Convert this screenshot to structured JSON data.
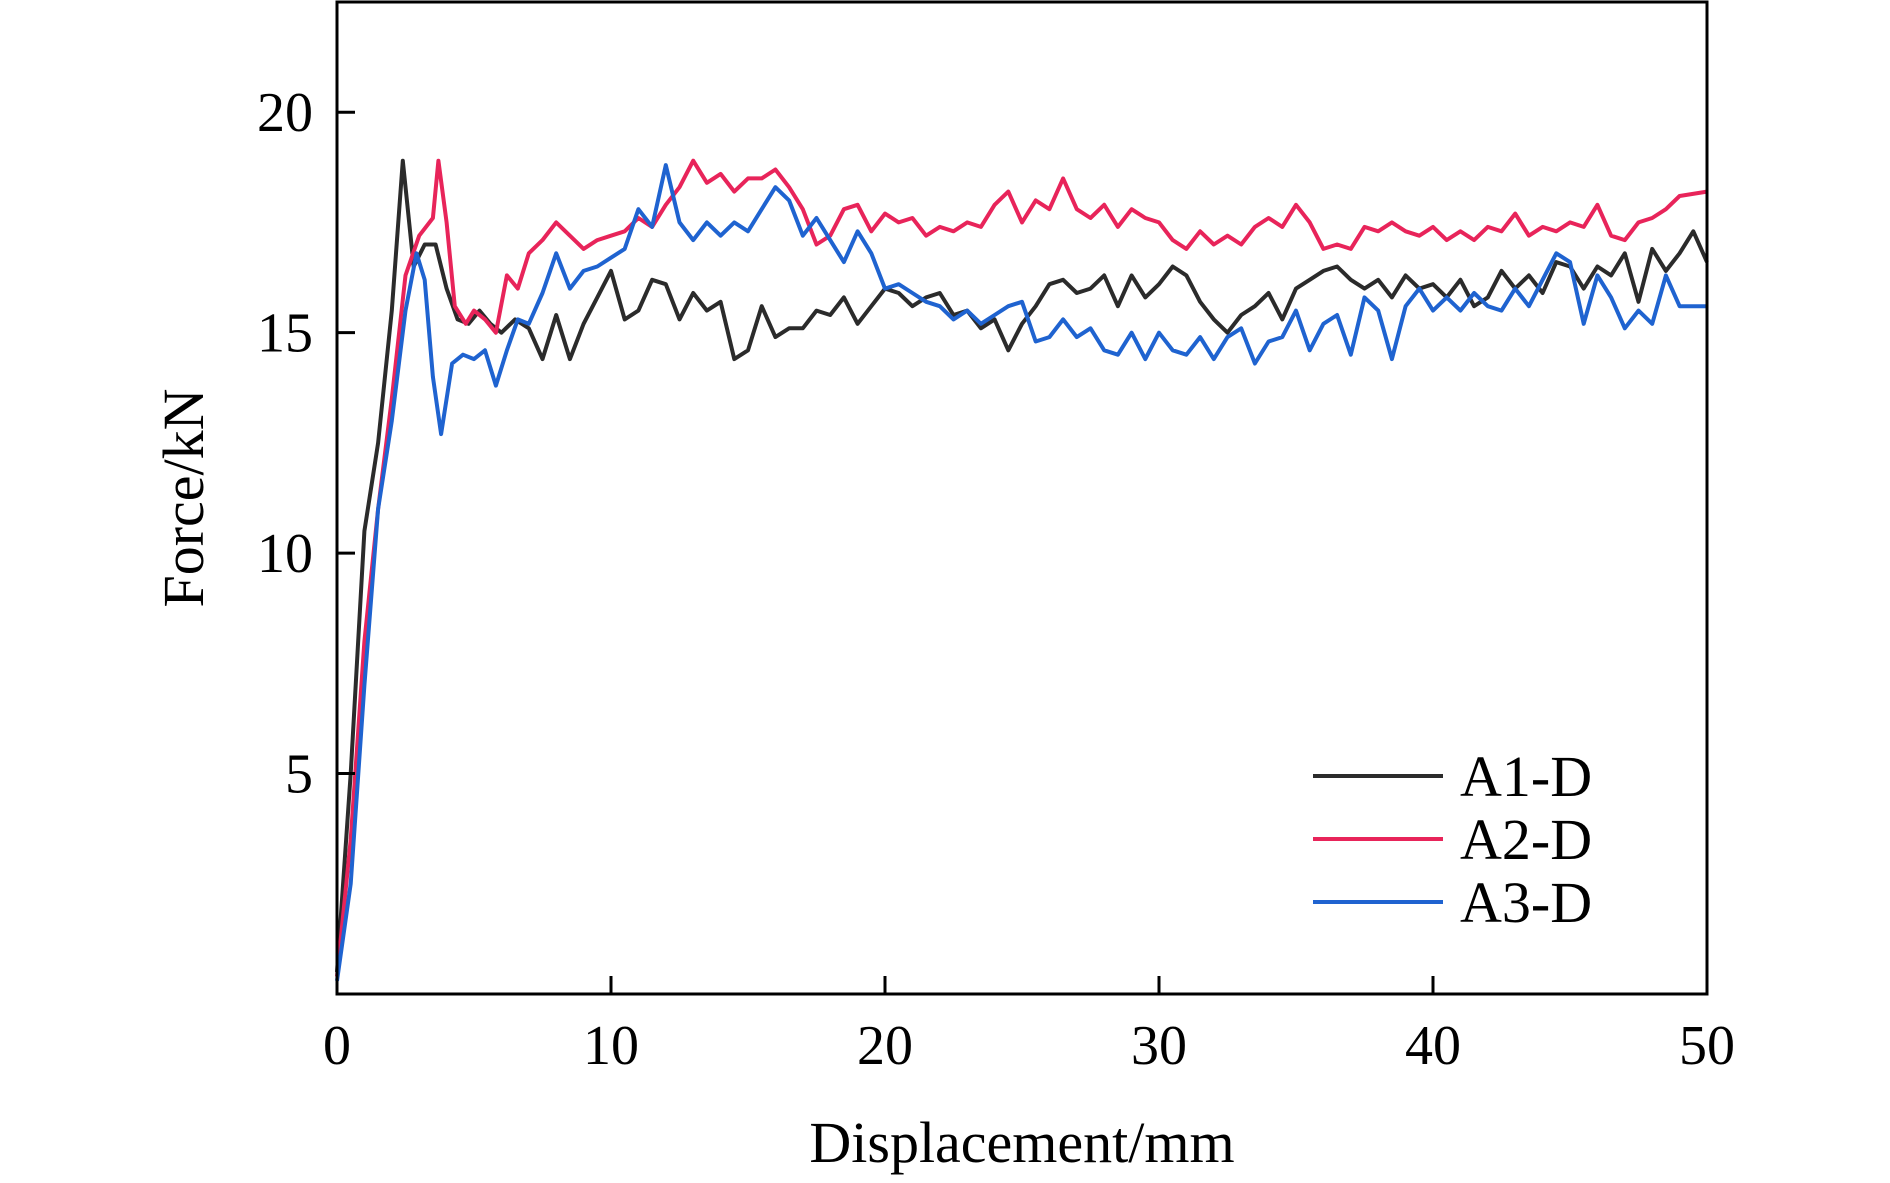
{
  "chart_data": {
    "type": "line",
    "xlabel": "Displacement/mm",
    "ylabel": "Force/kN",
    "xlim": [
      0,
      50
    ],
    "ylim": [
      0,
      22.5
    ],
    "x_ticks": [
      0,
      10,
      20,
      30,
      40,
      50
    ],
    "y_ticks": [
      5,
      10,
      15,
      20
    ],
    "x_tick_labels": [
      "0",
      "10",
      "20",
      "30",
      "40",
      "50"
    ],
    "y_tick_labels": [
      "5",
      "10",
      "15",
      "20"
    ],
    "grid": false,
    "legend_position": "bottom-right",
    "series": [
      {
        "name": "A1-D",
        "color": "#2b2b2b",
        "points": [
          [
            0,
            0.5
          ],
          [
            0.5,
            5
          ],
          [
            1.0,
            10.5
          ],
          [
            1.5,
            12.5
          ],
          [
            2.0,
            15.5
          ],
          [
            2.4,
            18.9
          ],
          [
            2.8,
            16.5
          ],
          [
            3.2,
            17.0
          ],
          [
            3.6,
            17.0
          ],
          [
            4.0,
            16.0
          ],
          [
            4.4,
            15.3
          ],
          [
            4.8,
            15.2
          ],
          [
            5.2,
            15.5
          ],
          [
            5.6,
            15.2
          ],
          [
            6.0,
            15.0
          ],
          [
            6.5,
            15.3
          ],
          [
            7.0,
            15.1
          ],
          [
            7.5,
            14.4
          ],
          [
            8.0,
            15.4
          ],
          [
            8.5,
            14.4
          ],
          [
            9.0,
            15.2
          ],
          [
            9.5,
            15.8
          ],
          [
            10.0,
            16.4
          ],
          [
            10.5,
            15.3
          ],
          [
            11.0,
            15.5
          ],
          [
            11.5,
            16.2
          ],
          [
            12.0,
            16.1
          ],
          [
            12.5,
            15.3
          ],
          [
            13.0,
            15.9
          ],
          [
            13.5,
            15.5
          ],
          [
            14.0,
            15.7
          ],
          [
            14.5,
            14.4
          ],
          [
            15.0,
            14.6
          ],
          [
            15.5,
            15.6
          ],
          [
            16.0,
            14.9
          ],
          [
            16.5,
            15.1
          ],
          [
            17.0,
            15.1
          ],
          [
            17.5,
            15.5
          ],
          [
            18.0,
            15.4
          ],
          [
            18.5,
            15.8
          ],
          [
            19.0,
            15.2
          ],
          [
            19.5,
            15.6
          ],
          [
            20.0,
            16.0
          ],
          [
            20.5,
            15.9
          ],
          [
            21.0,
            15.6
          ],
          [
            21.5,
            15.8
          ],
          [
            22.0,
            15.9
          ],
          [
            22.5,
            15.4
          ],
          [
            23.0,
            15.5
          ],
          [
            23.5,
            15.1
          ],
          [
            24.0,
            15.3
          ],
          [
            24.5,
            14.6
          ],
          [
            25.0,
            15.2
          ],
          [
            25.5,
            15.6
          ],
          [
            26.0,
            16.1
          ],
          [
            26.5,
            16.2
          ],
          [
            27.0,
            15.9
          ],
          [
            27.5,
            16.0
          ],
          [
            28.0,
            16.3
          ],
          [
            28.5,
            15.6
          ],
          [
            29.0,
            16.3
          ],
          [
            29.5,
            15.8
          ],
          [
            30.0,
            16.1
          ],
          [
            30.5,
            16.5
          ],
          [
            31.0,
            16.3
          ],
          [
            31.5,
            15.7
          ],
          [
            32.0,
            15.3
          ],
          [
            32.5,
            15.0
          ],
          [
            33.0,
            15.4
          ],
          [
            33.5,
            15.6
          ],
          [
            34.0,
            15.9
          ],
          [
            34.5,
            15.3
          ],
          [
            35.0,
            16.0
          ],
          [
            35.5,
            16.2
          ],
          [
            36.0,
            16.4
          ],
          [
            36.5,
            16.5
          ],
          [
            37.0,
            16.2
          ],
          [
            37.5,
            16.0
          ],
          [
            38.0,
            16.2
          ],
          [
            38.5,
            15.8
          ],
          [
            39.0,
            16.3
          ],
          [
            39.5,
            16.0
          ],
          [
            40.0,
            16.1
          ],
          [
            40.5,
            15.8
          ],
          [
            41.0,
            16.2
          ],
          [
            41.5,
            15.6
          ],
          [
            42.0,
            15.8
          ],
          [
            42.5,
            16.4
          ],
          [
            43.0,
            16.0
          ],
          [
            43.5,
            16.3
          ],
          [
            44.0,
            15.9
          ],
          [
            44.5,
            16.6
          ],
          [
            45.0,
            16.5
          ],
          [
            45.5,
            16.0
          ],
          [
            46.0,
            16.5
          ],
          [
            46.5,
            16.3
          ],
          [
            47.0,
            16.8
          ],
          [
            47.5,
            15.7
          ],
          [
            48.0,
            16.9
          ],
          [
            48.5,
            16.4
          ],
          [
            49.0,
            16.8
          ],
          [
            49.5,
            17.3
          ],
          [
            50.0,
            16.6
          ]
        ]
      },
      {
        "name": "A2-D",
        "color": "#e8245a",
        "points": [
          [
            0,
            0.4
          ],
          [
            0.5,
            3.5
          ],
          [
            1.0,
            8
          ],
          [
            1.5,
            11
          ],
          [
            2.0,
            13.5
          ],
          [
            2.5,
            16.3
          ],
          [
            3.0,
            17.2
          ],
          [
            3.5,
            17.6
          ],
          [
            3.7,
            18.9
          ],
          [
            4.0,
            17.5
          ],
          [
            4.3,
            15.6
          ],
          [
            4.7,
            15.2
          ],
          [
            5.0,
            15.5
          ],
          [
            5.4,
            15.3
          ],
          [
            5.8,
            15.0
          ],
          [
            6.2,
            16.3
          ],
          [
            6.6,
            16.0
          ],
          [
            7.0,
            16.8
          ],
          [
            7.5,
            17.1
          ],
          [
            8.0,
            17.5
          ],
          [
            8.5,
            17.2
          ],
          [
            9.0,
            16.9
          ],
          [
            9.5,
            17.1
          ],
          [
            10.0,
            17.2
          ],
          [
            10.5,
            17.3
          ],
          [
            11.0,
            17.6
          ],
          [
            11.5,
            17.4
          ],
          [
            12.0,
            17.9
          ],
          [
            12.5,
            18.3
          ],
          [
            13.0,
            18.9
          ],
          [
            13.5,
            18.4
          ],
          [
            14.0,
            18.6
          ],
          [
            14.5,
            18.2
          ],
          [
            15.0,
            18.5
          ],
          [
            15.5,
            18.5
          ],
          [
            16.0,
            18.7
          ],
          [
            16.5,
            18.3
          ],
          [
            17.0,
            17.8
          ],
          [
            17.5,
            17.0
          ],
          [
            18.0,
            17.2
          ],
          [
            18.5,
            17.8
          ],
          [
            19.0,
            17.9
          ],
          [
            19.5,
            17.3
          ],
          [
            20.0,
            17.7
          ],
          [
            20.5,
            17.5
          ],
          [
            21.0,
            17.6
          ],
          [
            21.5,
            17.2
          ],
          [
            22.0,
            17.4
          ],
          [
            22.5,
            17.3
          ],
          [
            23.0,
            17.5
          ],
          [
            23.5,
            17.4
          ],
          [
            24.0,
            17.9
          ],
          [
            24.5,
            18.2
          ],
          [
            25.0,
            17.5
          ],
          [
            25.5,
            18.0
          ],
          [
            26.0,
            17.8
          ],
          [
            26.5,
            18.5
          ],
          [
            27.0,
            17.8
          ],
          [
            27.5,
            17.6
          ],
          [
            28.0,
            17.9
          ],
          [
            28.5,
            17.4
          ],
          [
            29.0,
            17.8
          ],
          [
            29.5,
            17.6
          ],
          [
            30.0,
            17.5
          ],
          [
            30.5,
            17.1
          ],
          [
            31.0,
            16.9
          ],
          [
            31.5,
            17.3
          ],
          [
            32.0,
            17.0
          ],
          [
            32.5,
            17.2
          ],
          [
            33.0,
            17.0
          ],
          [
            33.5,
            17.4
          ],
          [
            34.0,
            17.6
          ],
          [
            34.5,
            17.4
          ],
          [
            35.0,
            17.9
          ],
          [
            35.5,
            17.5
          ],
          [
            36.0,
            16.9
          ],
          [
            36.5,
            17.0
          ],
          [
            37.0,
            16.9
          ],
          [
            37.5,
            17.4
          ],
          [
            38.0,
            17.3
          ],
          [
            38.5,
            17.5
          ],
          [
            39.0,
            17.3
          ],
          [
            39.5,
            17.2
          ],
          [
            40.0,
            17.4
          ],
          [
            40.5,
            17.1
          ],
          [
            41.0,
            17.3
          ],
          [
            41.5,
            17.1
          ],
          [
            42.0,
            17.4
          ],
          [
            42.5,
            17.3
          ],
          [
            43.0,
            17.7
          ],
          [
            43.5,
            17.2
          ],
          [
            44.0,
            17.4
          ],
          [
            44.5,
            17.3
          ],
          [
            45.0,
            17.5
          ],
          [
            45.5,
            17.4
          ],
          [
            46.0,
            17.9
          ],
          [
            46.5,
            17.2
          ],
          [
            47.0,
            17.1
          ],
          [
            47.5,
            17.5
          ],
          [
            48.0,
            17.6
          ],
          [
            48.5,
            17.8
          ],
          [
            49.0,
            18.1
          ],
          [
            50.0,
            18.2
          ]
        ]
      },
      {
        "name": "A3-D",
        "color": "#1f63d0",
        "points": [
          [
            0,
            0.3
          ],
          [
            0.5,
            2.5
          ],
          [
            1.0,
            7
          ],
          [
            1.5,
            11
          ],
          [
            2.0,
            13
          ],
          [
            2.5,
            15.5
          ],
          [
            2.9,
            16.8
          ],
          [
            3.2,
            16.2
          ],
          [
            3.5,
            14.0
          ],
          [
            3.8,
            12.7
          ],
          [
            4.2,
            14.3
          ],
          [
            4.6,
            14.5
          ],
          [
            5.0,
            14.4
          ],
          [
            5.4,
            14.6
          ],
          [
            5.8,
            13.8
          ],
          [
            6.2,
            14.6
          ],
          [
            6.6,
            15.3
          ],
          [
            7.0,
            15.2
          ],
          [
            7.5,
            15.9
          ],
          [
            8.0,
            16.8
          ],
          [
            8.5,
            16.0
          ],
          [
            9.0,
            16.4
          ],
          [
            9.5,
            16.5
          ],
          [
            10.0,
            16.7
          ],
          [
            10.5,
            16.9
          ],
          [
            11.0,
            17.8
          ],
          [
            11.5,
            17.4
          ],
          [
            12.0,
            18.8
          ],
          [
            12.5,
            17.5
          ],
          [
            13.0,
            17.1
          ],
          [
            13.5,
            17.5
          ],
          [
            14.0,
            17.2
          ],
          [
            14.5,
            17.5
          ],
          [
            15.0,
            17.3
          ],
          [
            15.5,
            17.8
          ],
          [
            16.0,
            18.3
          ],
          [
            16.5,
            18.0
          ],
          [
            17.0,
            17.2
          ],
          [
            17.5,
            17.6
          ],
          [
            18.0,
            17.1
          ],
          [
            18.5,
            16.6
          ],
          [
            19.0,
            17.3
          ],
          [
            19.5,
            16.8
          ],
          [
            20.0,
            16.0
          ],
          [
            20.5,
            16.1
          ],
          [
            21.0,
            15.9
          ],
          [
            21.5,
            15.7
          ],
          [
            22.0,
            15.6
          ],
          [
            22.5,
            15.3
          ],
          [
            23.0,
            15.5
          ],
          [
            23.5,
            15.2
          ],
          [
            24.0,
            15.4
          ],
          [
            24.5,
            15.6
          ],
          [
            25.0,
            15.7
          ],
          [
            25.5,
            14.8
          ],
          [
            26.0,
            14.9
          ],
          [
            26.5,
            15.3
          ],
          [
            27.0,
            14.9
          ],
          [
            27.5,
            15.1
          ],
          [
            28.0,
            14.6
          ],
          [
            28.5,
            14.5
          ],
          [
            29.0,
            15.0
          ],
          [
            29.5,
            14.4
          ],
          [
            30.0,
            15.0
          ],
          [
            30.5,
            14.6
          ],
          [
            31.0,
            14.5
          ],
          [
            31.5,
            14.9
          ],
          [
            32.0,
            14.4
          ],
          [
            32.5,
            14.9
          ],
          [
            33.0,
            15.1
          ],
          [
            33.5,
            14.3
          ],
          [
            34.0,
            14.8
          ],
          [
            34.5,
            14.9
          ],
          [
            35.0,
            15.5
          ],
          [
            35.5,
            14.6
          ],
          [
            36.0,
            15.2
          ],
          [
            36.5,
            15.4
          ],
          [
            37.0,
            14.5
          ],
          [
            37.5,
            15.8
          ],
          [
            38.0,
            15.5
          ],
          [
            38.5,
            14.4
          ],
          [
            39.0,
            15.6
          ],
          [
            39.5,
            16.0
          ],
          [
            40.0,
            15.5
          ],
          [
            40.5,
            15.8
          ],
          [
            41.0,
            15.5
          ],
          [
            41.5,
            15.9
          ],
          [
            42.0,
            15.6
          ],
          [
            42.5,
            15.5
          ],
          [
            43.0,
            16.0
          ],
          [
            43.5,
            15.6
          ],
          [
            44.0,
            16.2
          ],
          [
            44.5,
            16.8
          ],
          [
            45.0,
            16.6
          ],
          [
            45.5,
            15.2
          ],
          [
            46.0,
            16.3
          ],
          [
            46.5,
            15.8
          ],
          [
            47.0,
            15.1
          ],
          [
            47.5,
            15.5
          ],
          [
            48.0,
            15.2
          ],
          [
            48.5,
            16.3
          ],
          [
            49.0,
            15.6
          ],
          [
            50.0,
            15.6
          ]
        ]
      }
    ]
  }
}
